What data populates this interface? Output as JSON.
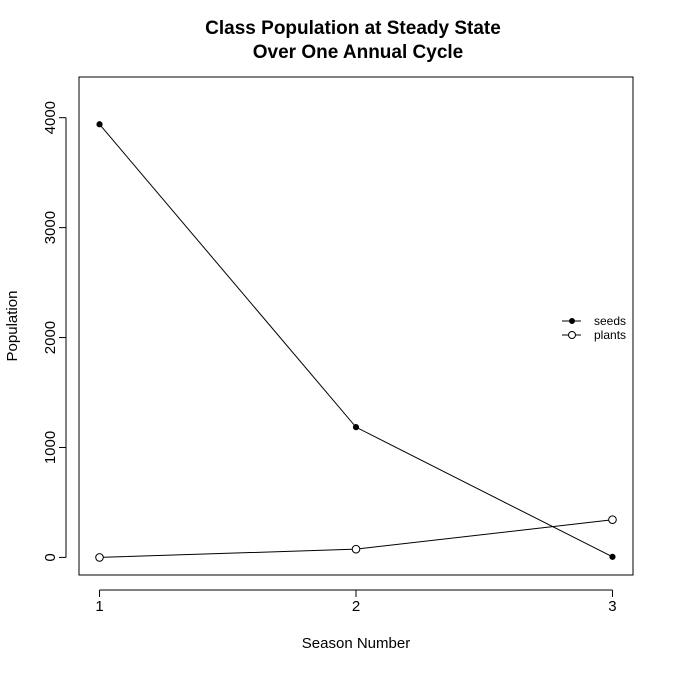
{
  "chart_data": {
    "type": "line",
    "title": [
      "Class Population at Steady State",
      "Over One Annual Cycle"
    ],
    "xlabel": "Season Number",
    "ylabel": "Population",
    "x": [
      1,
      2,
      3
    ],
    "x_ticks": [
      "1",
      "2",
      "3"
    ],
    "y_ticks": [
      "0",
      "1000",
      "2000",
      "3000",
      "4000"
    ],
    "xlim": [
      0.92,
      3.08
    ],
    "ylim": [
      -160,
      4370
    ],
    "grid": false,
    "legend_position": "right",
    "series": [
      {
        "name": "seeds",
        "values": [
          3940,
          1185,
          5
        ],
        "marker": "filled-circle",
        "color": "#000000"
      },
      {
        "name": "plants",
        "values": [
          0,
          75,
          343
        ],
        "marker": "open-circle",
        "color": "#000000"
      }
    ]
  }
}
